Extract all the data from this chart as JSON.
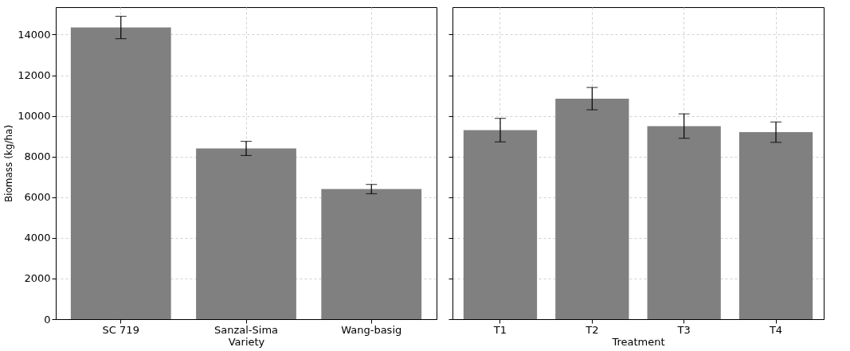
{
  "chart_data": [
    {
      "type": "bar",
      "xlabel": "Variety",
      "ylabel": "Biomass (kg/ha)",
      "categories": [
        "SC 719",
        "Sanzal-Sima",
        "Wang-basig"
      ],
      "values": [
        14350,
        8400,
        6400
      ],
      "errors": [
        550,
        350,
        230
      ],
      "color": "#808080",
      "ylim": [
        0,
        15350
      ],
      "yticks": [
        0,
        2000,
        4000,
        6000,
        8000,
        10000,
        12000,
        14000
      ],
      "grid": true
    },
    {
      "type": "bar",
      "xlabel": "Treatment",
      "categories": [
        "T1",
        "T2",
        "T3",
        "T4"
      ],
      "values": [
        9300,
        10850,
        9500,
        9200
      ],
      "errors": [
        580,
        550,
        600,
        500
      ],
      "color": "#808080",
      "ylim": [
        0,
        15350
      ],
      "yticks": [
        0,
        2000,
        4000,
        6000,
        8000,
        10000,
        12000,
        14000
      ],
      "grid": true,
      "tick_labels": "x"
    }
  ]
}
